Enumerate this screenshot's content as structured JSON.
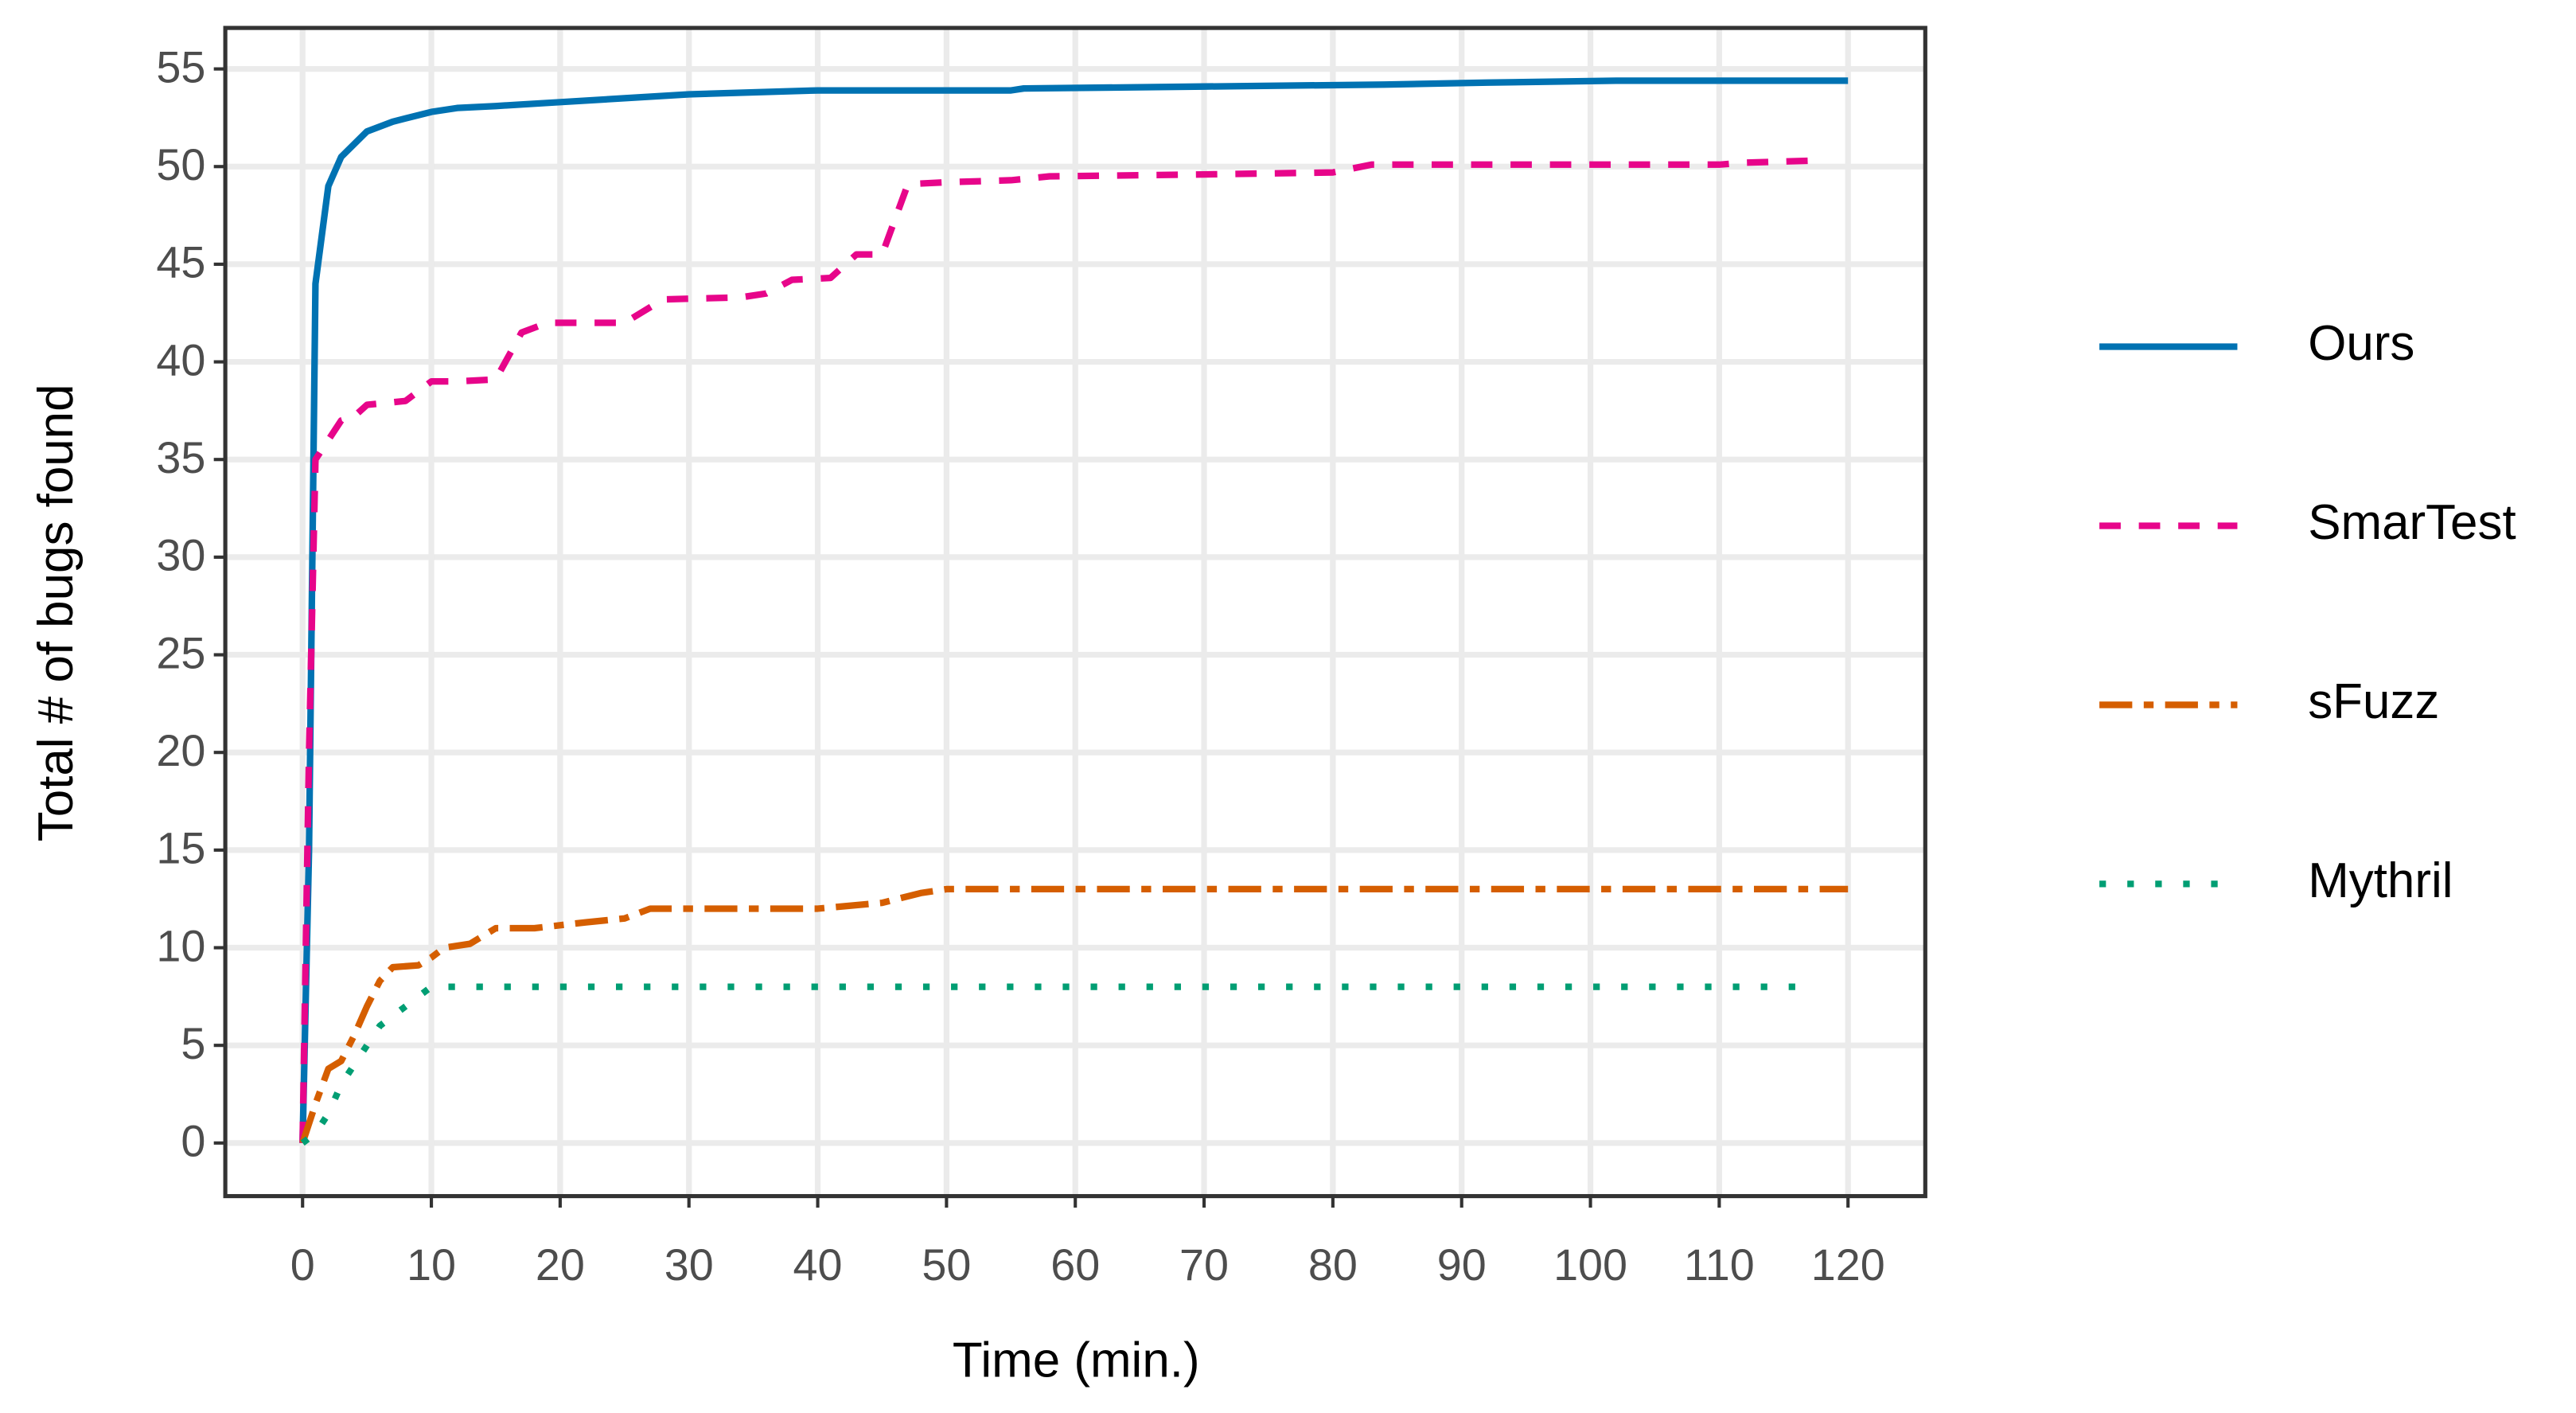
{
  "chart_data": {
    "type": "line",
    "x_label": "Time (min.)",
    "y_label": "Total # of bugs found",
    "xlim": [
      -6,
      126
    ],
    "ylim": [
      -2.72,
      57.1
    ],
    "xticks": [
      0,
      10,
      20,
      30,
      40,
      50,
      60,
      70,
      80,
      90,
      100,
      110,
      120
    ],
    "yticks": [
      0,
      5,
      10,
      15,
      20,
      25,
      30,
      35,
      40,
      45,
      50,
      55
    ],
    "grid": true,
    "legend": "right",
    "series": [
      {
        "name": "Ours",
        "color": "#0072b2",
        "linestyle": "solid",
        "x": [
          0,
          0.5,
          1,
          2,
          3,
          5,
          7,
          10,
          12,
          15,
          20,
          25,
          30,
          35,
          40,
          55,
          56,
          70,
          84,
          92,
          102,
          120
        ],
        "values": [
          0,
          15,
          44,
          49,
          50.5,
          51.8,
          52.3,
          52.8,
          53,
          53.1,
          53.3,
          53.5,
          53.7,
          53.8,
          53.9,
          53.9,
          54,
          54.1,
          54.2,
          54.3,
          54.4,
          54.4
        ]
      },
      {
        "name": "SmarTest",
        "color": "#e7058a",
        "linestyle": "dashed",
        "x": [
          0,
          0.5,
          1,
          2,
          3,
          4,
          5,
          8,
          10,
          12,
          15,
          17,
          19,
          25,
          28,
          34,
          36,
          38,
          41,
          43,
          45,
          47,
          50,
          55,
          58,
          70,
          80,
          83,
          110,
          112,
          117
        ],
        "values": [
          0,
          20,
          35,
          36,
          37,
          37.2,
          37.8,
          38,
          39,
          39,
          39.1,
          41.5,
          42,
          42,
          43.2,
          43.3,
          43.5,
          44.2,
          44.3,
          45.5,
          45.5,
          49.1,
          49.2,
          49.3,
          49.5,
          49.6,
          49.7,
          50.1,
          50.1,
          50.2,
          50.3
        ]
      },
      {
        "name": "sFuzz",
        "color": "#d55e00",
        "linestyle": "longdash-dot",
        "x": [
          0,
          1,
          2,
          3,
          4,
          5,
          6,
          7,
          9,
          10,
          11,
          13,
          15,
          18,
          22,
          25,
          27,
          40,
          45,
          48,
          50,
          120
        ],
        "values": [
          0,
          2,
          3.8,
          4.2,
          5.5,
          7,
          8.3,
          9,
          9.1,
          9.5,
          10,
          10.2,
          11,
          11,
          11.3,
          11.5,
          12,
          12,
          12.3,
          12.8,
          13,
          13
        ]
      },
      {
        "name": "Mythril",
        "color": "#009e73",
        "linestyle": "dotted",
        "x": [
          0,
          1,
          2,
          3,
          5,
          6,
          8,
          9,
          10,
          117
        ],
        "values": [
          0,
          0.5,
          1.5,
          3,
          5,
          6,
          7,
          7.5,
          8,
          8
        ]
      }
    ]
  }
}
